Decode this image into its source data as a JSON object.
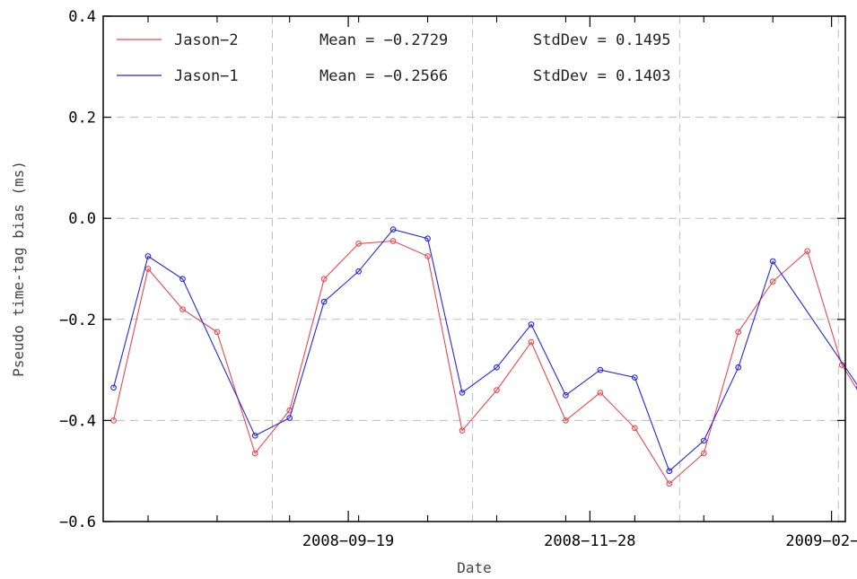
{
  "chart_data": {
    "type": "line",
    "xlabel": "Date",
    "ylabel": "Pseudo time-tag bias (ms)",
    "ylim": [
      -0.6,
      0.4
    ],
    "xlim": [
      "2008-07-10",
      "2009-02-10"
    ],
    "grid": true,
    "legend_position": "top-left",
    "y_ticks": [
      -0.6,
      -0.4,
      -0.2,
      0.0,
      0.2,
      0.4
    ],
    "y_tick_labels": [
      "-0.6",
      "-0.4",
      "-0.2",
      "0.0",
      "0.2",
      "0.4"
    ],
    "x_tick_labels": [
      "2008-09-19",
      "2008-11-28",
      "2009-02-06"
    ],
    "series": [
      {
        "name": "Jason-2",
        "color": "#e8474f",
        "mean_label": "Mean = -0.2729",
        "std_label": "StdDev = 0.1495",
        "points": [
          {
            "x": "2008-07-13",
            "y": -0.4
          },
          {
            "x": "2008-07-23",
            "y": -0.1
          },
          {
            "x": "2008-08-02",
            "y": -0.18
          },
          {
            "x": "2008-08-12",
            "y": -0.225
          },
          {
            "x": "2008-08-23",
            "y": -0.465
          },
          {
            "x": "2008-09-02",
            "y": -0.38
          },
          {
            "x": "2008-09-12",
            "y": -0.12
          },
          {
            "x": "2008-09-22",
            "y": -0.05
          },
          {
            "x": "2008-10-02",
            "y": -0.045
          },
          {
            "x": "2008-10-12",
            "y": -0.075
          },
          {
            "x": "2008-10-22",
            "y": -0.42
          },
          {
            "x": "2008-11-01",
            "y": -0.34
          },
          {
            "x": "2008-11-11",
            "y": -0.245
          },
          {
            "x": "2008-11-21",
            "y": -0.4
          },
          {
            "x": "2008-12-01",
            "y": -0.345
          },
          {
            "x": "2008-12-11",
            "y": -0.415
          },
          {
            "x": "2008-12-21",
            "y": -0.525
          },
          {
            "x": "2008-12-31",
            "y": -0.465
          },
          {
            "x": "2009-01-10",
            "y": -0.225
          },
          {
            "x": "2009-01-20",
            "y": -0.125
          },
          {
            "x": "2009-01-30",
            "y": -0.065
          },
          {
            "x": "2009-02-09",
            "y": -0.29
          },
          {
            "x": "2009-02-19",
            "y": -0.4
          }
        ]
      },
      {
        "name": "Jason-1",
        "color": "#2626e0",
        "mean_label": "Mean = -0.2566",
        "std_label": "StdDev = 0.1403",
        "points": [
          {
            "x": "2008-07-13",
            "y": -0.335
          },
          {
            "x": "2008-07-23",
            "y": -0.075
          },
          {
            "x": "2008-08-02",
            "y": -0.12
          },
          {
            "x": "2008-08-23",
            "y": -0.43
          },
          {
            "x": "2008-09-02",
            "y": -0.395
          },
          {
            "x": "2008-09-12",
            "y": -0.165
          },
          {
            "x": "2008-09-22",
            "y": -0.105
          },
          {
            "x": "2008-10-02",
            "y": -0.022
          },
          {
            "x": "2008-10-12",
            "y": -0.04
          },
          {
            "x": "2008-10-22",
            "y": -0.345
          },
          {
            "x": "2008-11-01",
            "y": -0.295
          },
          {
            "x": "2008-11-11",
            "y": -0.21
          },
          {
            "x": "2008-11-21",
            "y": -0.35
          },
          {
            "x": "2008-12-01",
            "y": -0.3
          },
          {
            "x": "2008-12-11",
            "y": -0.315
          },
          {
            "x": "2008-12-21",
            "y": -0.5
          },
          {
            "x": "2008-12-31",
            "y": -0.44
          },
          {
            "x": "2009-01-10",
            "y": -0.295
          },
          {
            "x": "2009-01-20",
            "y": -0.085
          },
          {
            "x": "2009-02-14",
            "y": -0.335
          }
        ]
      }
    ]
  }
}
